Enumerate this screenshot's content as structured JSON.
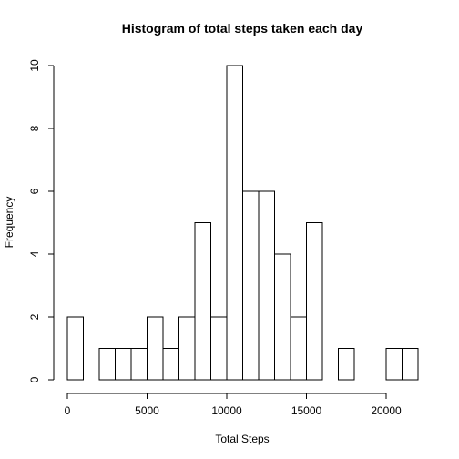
{
  "chart_data": {
    "type": "bar",
    "title": "Histogram of total steps taken each day",
    "xlabel": "Total Steps",
    "ylabel": "Frequency",
    "bin_width": 1000,
    "bin_start": 0,
    "values": [
      2,
      0,
      1,
      1,
      1,
      2,
      1,
      2,
      5,
      2,
      10,
      6,
      6,
      4,
      2,
      5,
      0,
      1,
      0,
      0,
      1,
      1
    ],
    "xlim": [
      0,
      22000
    ],
    "ylim": [
      0,
      10
    ],
    "x_ticks": [
      0,
      5000,
      10000,
      15000,
      20000
    ],
    "y_ticks": [
      0,
      2,
      4,
      6,
      8,
      10
    ],
    "grid": false
  }
}
